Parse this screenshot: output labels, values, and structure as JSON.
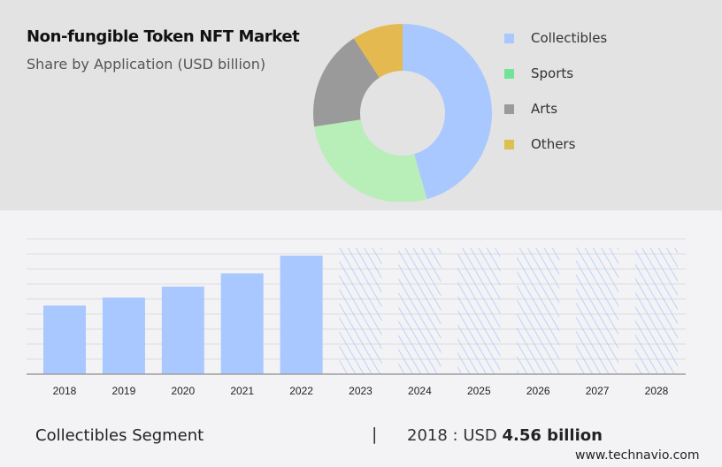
{
  "header": {
    "title": "Non-fungible Token NFT Market",
    "subtitle": "Share by Application (USD billion)"
  },
  "chart_data": [
    {
      "type": "pie",
      "style": "donut",
      "title": "Non-fungible Token NFT Market",
      "subtitle": "Share by Application (USD billion)",
      "categories": [
        "Collectibles",
        "Sports",
        "Arts",
        "Others"
      ],
      "values": [
        45.6,
        27.0,
        18.2,
        9.2
      ],
      "colors": [
        "#a8c8ff",
        "#b8eeb8",
        "#9a9a9a",
        "#e4b94f"
      ],
      "legend_colors": [
        "#a8c8ff",
        "#74e39a",
        "#9a9a9a",
        "#dcc050"
      ],
      "legend": "right"
    },
    {
      "type": "bar",
      "categories": [
        "2018",
        "2019",
        "2020",
        "2021",
        "2022",
        "2023",
        "2024",
        "2025",
        "2026",
        "2027",
        "2028"
      ],
      "values": [
        4.56,
        5.09,
        5.82,
        6.7,
        7.88,
        null,
        null,
        null,
        null,
        null,
        null
      ],
      "forecast": [
        false,
        false,
        false,
        false,
        false,
        true,
        true,
        true,
        true,
        true,
        true
      ],
      "ylim": [
        0,
        9
      ],
      "grid": true,
      "xlabel": "",
      "ylabel": "",
      "color": "#a8c8ff"
    }
  ],
  "footer": {
    "segment": "Collectibles Segment",
    "separator": "|",
    "year_label": "2018 : USD ",
    "value": "4.56 billion",
    "site": "www.technavio.com"
  }
}
